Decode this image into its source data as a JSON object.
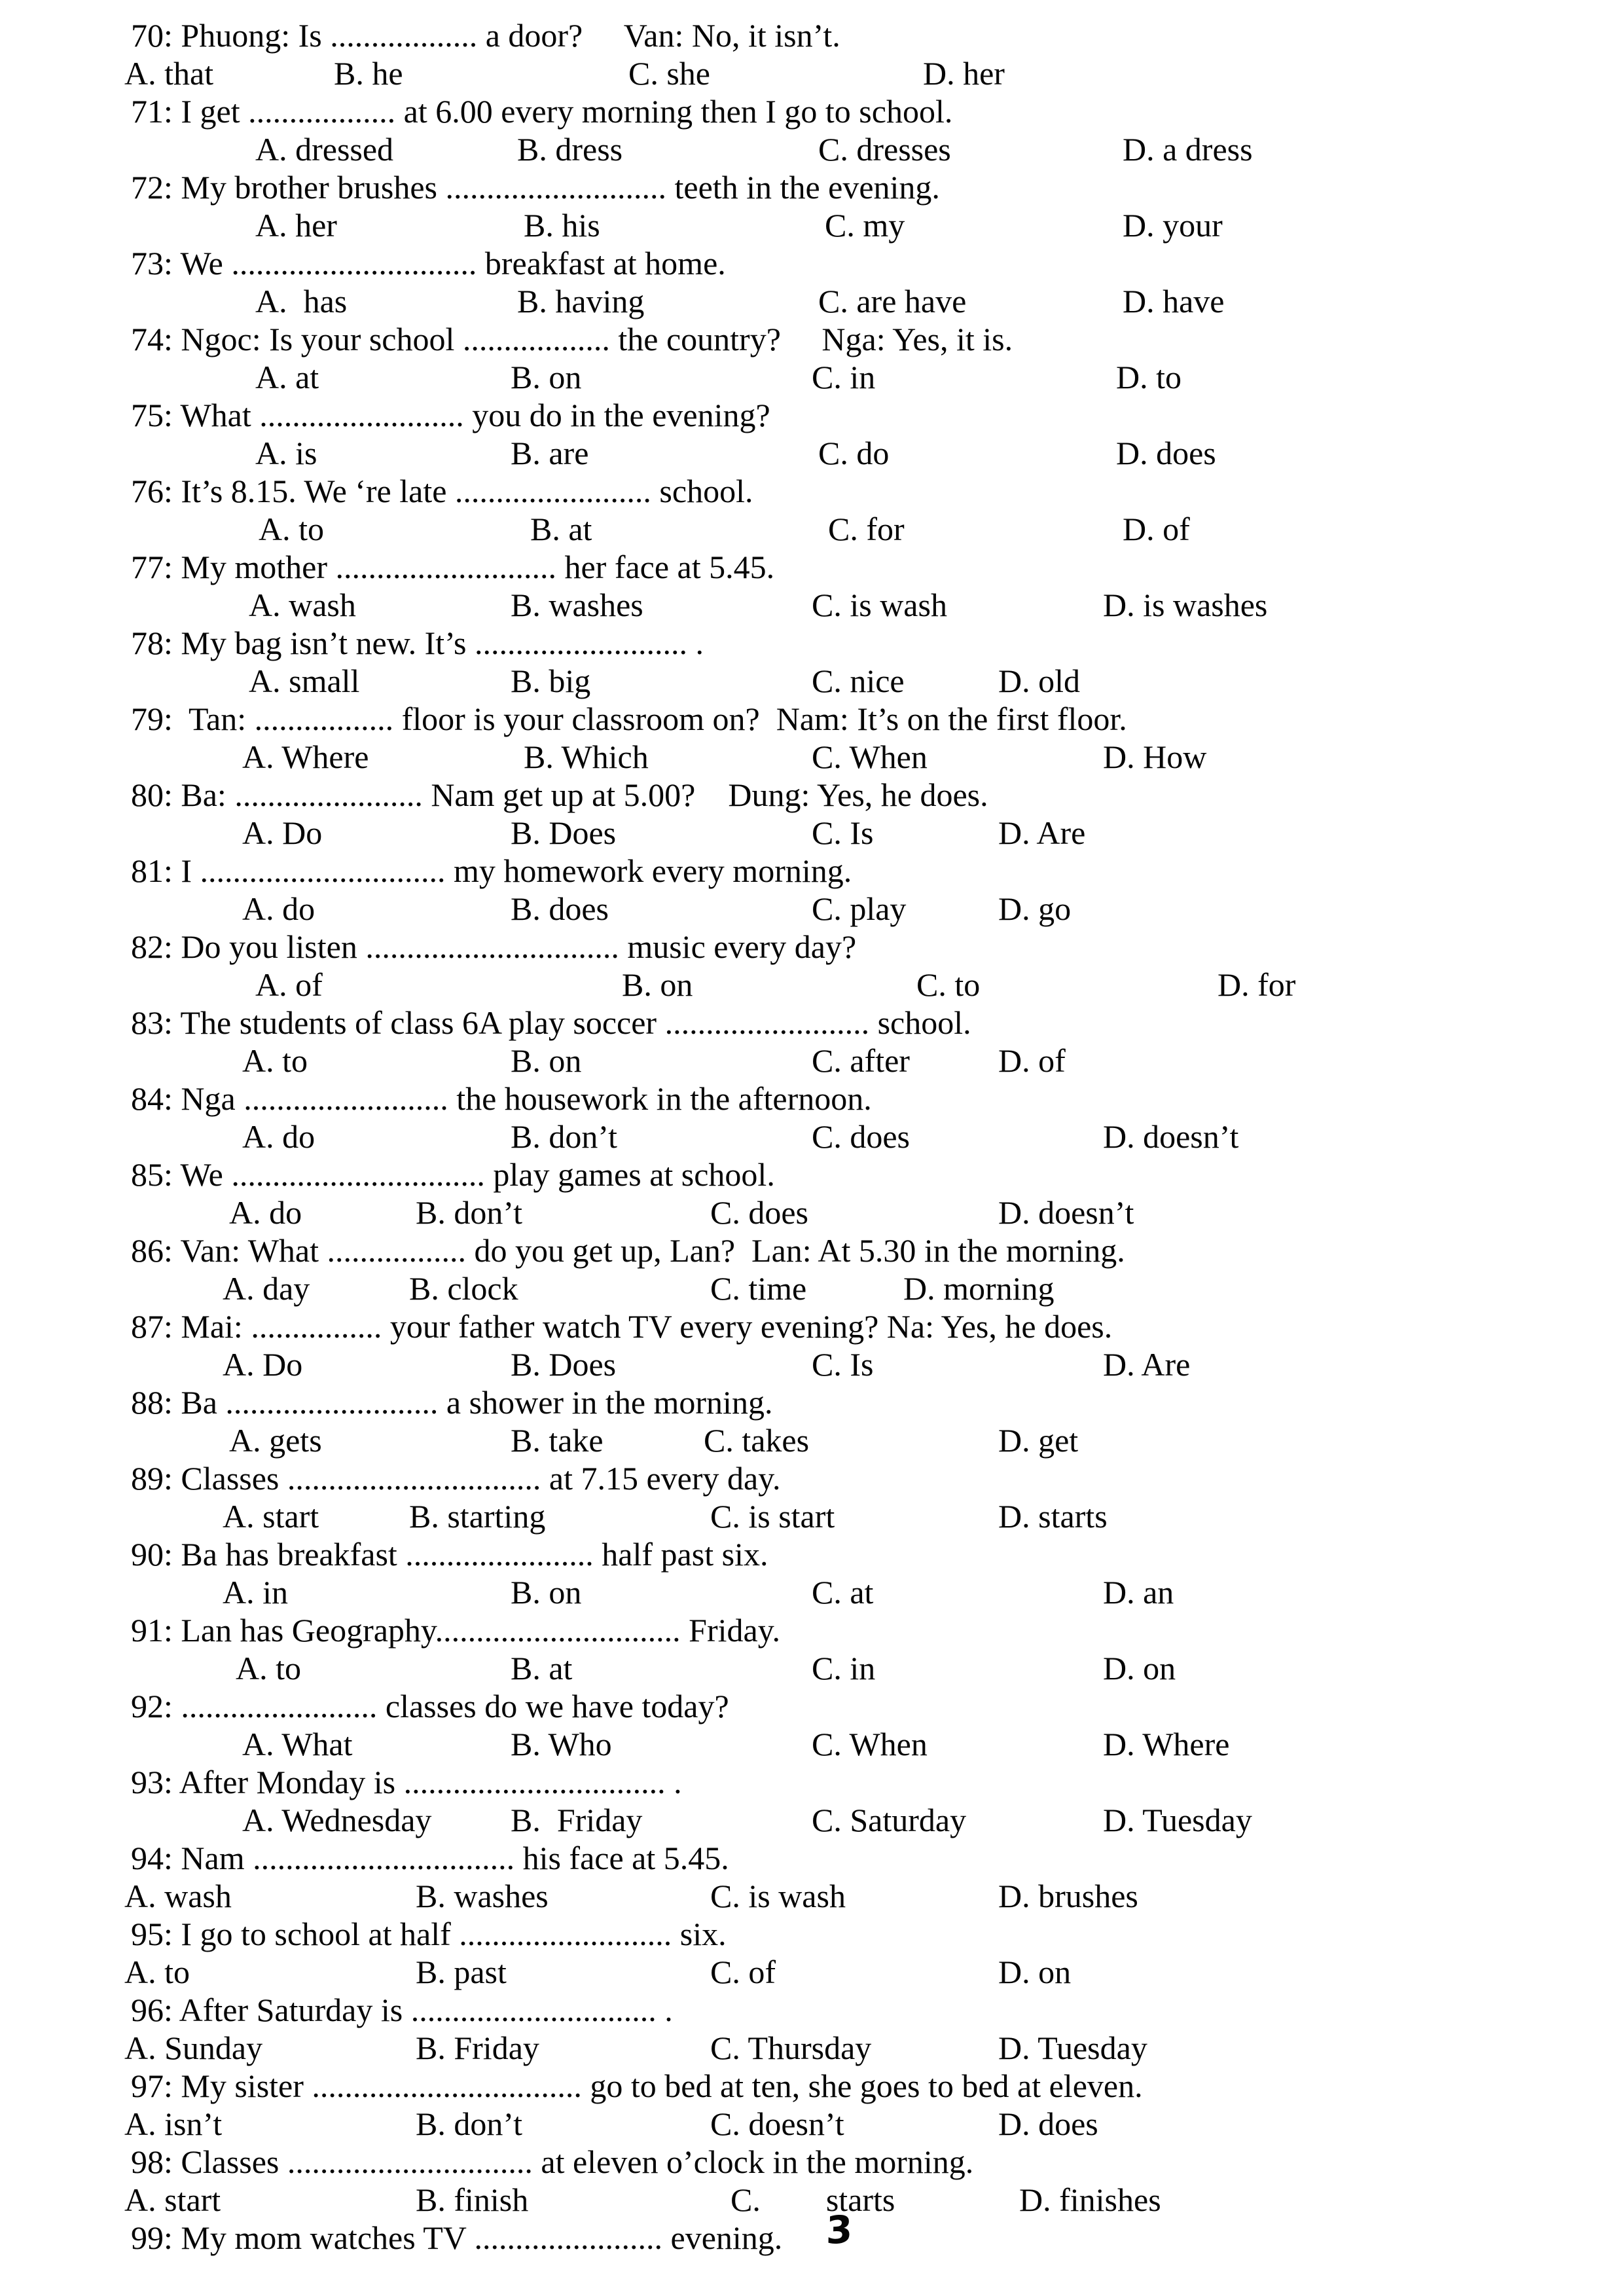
{
  "page": {
    "number_handwritten": "3"
  },
  "questions": [
    {
      "number": "70",
      "stem": "70: Phuong: Is .................. a door?     Van: No, it isn’t.",
      "options": [
        "A. that",
        "B. he",
        "C. she",
        "D. her"
      ]
    },
    {
      "number": "71",
      "stem": "71: I get .................. at 6.00 every morning then I go to school.",
      "options": [
        "A. dressed",
        "B. dress",
        "C. dresses",
        "D. a dress"
      ]
    },
    {
      "number": "72",
      "stem": "72: My brother brushes ........................... teeth in the evening.",
      "options": [
        "A. her",
        "B. his",
        "C. my",
        "D. your"
      ]
    },
    {
      "number": "73",
      "stem": "73: We .............................. breakfast at home.",
      "options": [
        "A.  has",
        "B. having",
        "C. are have",
        "D. have"
      ]
    },
    {
      "number": "74",
      "stem": "74: Ngoc: Is your school .................. the country?     Nga: Yes, it is.",
      "options": [
        "A. at",
        "B. on",
        "C. in",
        "D. to"
      ]
    },
    {
      "number": "75",
      "stem": "75: What ......................... you do in the evening?",
      "options": [
        "A. is",
        "B. are",
        "C. do",
        "D. does"
      ]
    },
    {
      "number": "76",
      "stem": "76: It’s 8.15. We ‘re late ........................ school.",
      "options": [
        "A. to",
        "B. at",
        "C. for",
        "D. of"
      ]
    },
    {
      "number": "77",
      "stem": "77: My mother ........................... her face at 5.45.",
      "options": [
        "A. wash",
        "B. washes",
        "C. is wash",
        "D. is washes"
      ]
    },
    {
      "number": "78",
      "stem": "78: My bag isn’t new. It’s .......................... .",
      "options": [
        "A. small",
        "B. big",
        "C. nice",
        "D. old"
      ]
    },
    {
      "number": "79",
      "stem": "79:  Tan: ................. floor is your classroom on?  Nam: It’s on the first floor.",
      "options": [
        "A. Where",
        "B. Which",
        "C. When",
        "D. How"
      ]
    },
    {
      "number": "80",
      "stem": "80: Ba: ....................... Nam get up at 5.00?    Dung: Yes, he does.",
      "options": [
        "A. Do",
        "B. Does",
        "C. Is",
        "D. Are"
      ]
    },
    {
      "number": "81",
      "stem": "81: I .............................. my homework every morning.",
      "options": [
        "A. do",
        "B. does",
        "C. play",
        "D. go"
      ]
    },
    {
      "number": "82",
      "stem": "82: Do you listen ............................... music every day?",
      "options": [
        "A. of",
        "B. on",
        "C. to",
        "D. for"
      ]
    },
    {
      "number": "83",
      "stem": "83: The students of class 6A play soccer ......................... school.",
      "options": [
        "A. to",
        "B. on",
        "C. after",
        "D. of"
      ]
    },
    {
      "number": "84",
      "stem": "84: Nga ......................... the housework in the afternoon.",
      "options": [
        "A. do",
        "B. don’t",
        "C. does",
        "D. doesn’t"
      ]
    },
    {
      "number": "85",
      "stem": "85: We ............................... play games at school.",
      "options": [
        "A. do",
        "B. don’t",
        "C. does",
        "D. doesn’t"
      ]
    },
    {
      "number": "86",
      "stem": "86: Van: What ................. do you get up, Lan?  Lan: At 5.30 in the morning.",
      "options": [
        "A. day",
        "B. clock",
        "C. time",
        "D. morning"
      ]
    },
    {
      "number": "87",
      "stem": "87: Mai: ................ your father watch TV every evening? Na: Yes, he does.",
      "options": [
        "A. Do",
        "B. Does",
        "C. Is",
        "D. Are"
      ]
    },
    {
      "number": "88",
      "stem": "88: Ba .......................... a shower in the morning.",
      "options": [
        "A. gets",
        "B. take",
        "C. takes",
        "D. get"
      ]
    },
    {
      "number": "89",
      "stem": "89: Classes ............................... at 7.15 every day.",
      "options": [
        "A. start",
        "B. starting",
        "C. is start",
        "D. starts"
      ]
    },
    {
      "number": "90",
      "stem": "90: Ba has breakfast ....................... half past six.",
      "options": [
        "A. in",
        "B. on",
        "C. at",
        "D. an"
      ]
    },
    {
      "number": "91",
      "stem": "91: Lan has Geography.............................. Friday.",
      "options": [
        "A. to",
        "B. at",
        "C. in",
        "D. on"
      ]
    },
    {
      "number": "92",
      "stem": "92: ........................ classes do we have today?",
      "options": [
        "A. What",
        "B. Who",
        "C. When",
        "D. Where"
      ]
    },
    {
      "number": "93",
      "stem": "93: After Monday is ................................ .",
      "options": [
        "A. Wednesday",
        "B.  Friday",
        "C. Saturday",
        "D. Tuesday"
      ]
    },
    {
      "number": "94",
      "stem": "94: Nam ................................ his face at 5.45.",
      "options": [
        "A. wash",
        "B. washes",
        "C. is wash",
        "D. brushes"
      ]
    },
    {
      "number": "95",
      "stem": "95: I go to school at half .......................... six.",
      "options": [
        "A. to",
        "B. past",
        "C. of",
        "D. on"
      ]
    },
    {
      "number": "96",
      "stem": "96: After Saturday is .............................. .",
      "options": [
        "A. Sunday",
        "B. Friday",
        "C. Thursday",
        "D. Tuesday"
      ]
    },
    {
      "number": "97",
      "stem": "97: My sister ................................. go to bed at ten, she goes to bed at eleven.",
      "options": [
        "A. isn’t",
        "B. don’t",
        "C. doesn’t",
        "D. does"
      ]
    },
    {
      "number": "98",
      "stem": "98: Classes .............................. at eleven o’clock in the morning.",
      "options": [
        "A. start",
        "B. finish",
        "C.        starts",
        "D. finishes"
      ]
    },
    {
      "number": "99",
      "stem": "99: My mom watches TV ....................... evening.",
      "options": []
    }
  ]
}
